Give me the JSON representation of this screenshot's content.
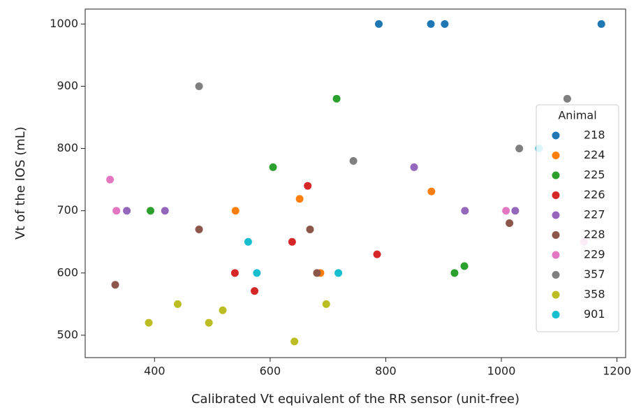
{
  "chart_data": {
    "type": "scatter",
    "x_label": "Calibrated Vt equivalent of the RR sensor (unit-free)",
    "y_label": "Vt of the IOS (mL)",
    "xlim": [
      280,
      1215
    ],
    "ylim": [
      464,
      1024
    ],
    "xticks": [
      400,
      600,
      800,
      1000,
      1200
    ],
    "yticks": [
      500,
      600,
      700,
      800,
      900,
      1000
    ],
    "grid": false,
    "legend_title": "Animal",
    "legend_position": "right",
    "series": [
      {
        "name": "218",
        "color": "#1f77b4",
        "x": [
          788,
          878,
          902,
          1173
        ],
        "values": [
          1000,
          1000,
          1000,
          1000
        ]
      },
      {
        "name": "224",
        "color": "#ff7f0e",
        "x": [
          540,
          651,
          879,
          687
        ],
        "values": [
          700,
          719,
          731,
          600
        ]
      },
      {
        "name": "225",
        "color": "#2ca02c",
        "x": [
          715,
          605,
          393,
          936,
          919
        ],
        "values": [
          880,
          770,
          700,
          611,
          600
        ]
      },
      {
        "name": "226",
        "color": "#d62728",
        "x": [
          665,
          638,
          539,
          573,
          785
        ],
        "values": [
          740,
          650,
          600,
          571,
          630
        ]
      },
      {
        "name": "227",
        "color": "#9467bd",
        "x": [
          849,
          352,
          418,
          937,
          1024
        ],
        "values": [
          770,
          700,
          700,
          700,
          700
        ]
      },
      {
        "name": "228",
        "color": "#8c564b",
        "x": [
          477,
          669,
          681,
          332,
          1014
        ],
        "values": [
          670,
          670,
          600,
          581,
          680
        ]
      },
      {
        "name": "229",
        "color": "#e377c2",
        "x": [
          323,
          334,
          1008,
          1143
        ],
        "values": [
          750,
          700,
          700,
          650
        ]
      },
      {
        "name": "357",
        "color": "#7f7f7f",
        "x": [
          477,
          744,
          1031,
          1114
        ],
        "values": [
          900,
          780,
          800,
          880
        ]
      },
      {
        "name": "358",
        "color": "#bcbd22",
        "x": [
          390,
          440,
          494,
          518,
          642,
          697
        ],
        "values": [
          520,
          550,
          520,
          540,
          490,
          550
        ]
      },
      {
        "name": "901",
        "color": "#17becf",
        "x": [
          562,
          577,
          718,
          1065
        ],
        "values": [
          650,
          600,
          600,
          800
        ]
      }
    ]
  }
}
